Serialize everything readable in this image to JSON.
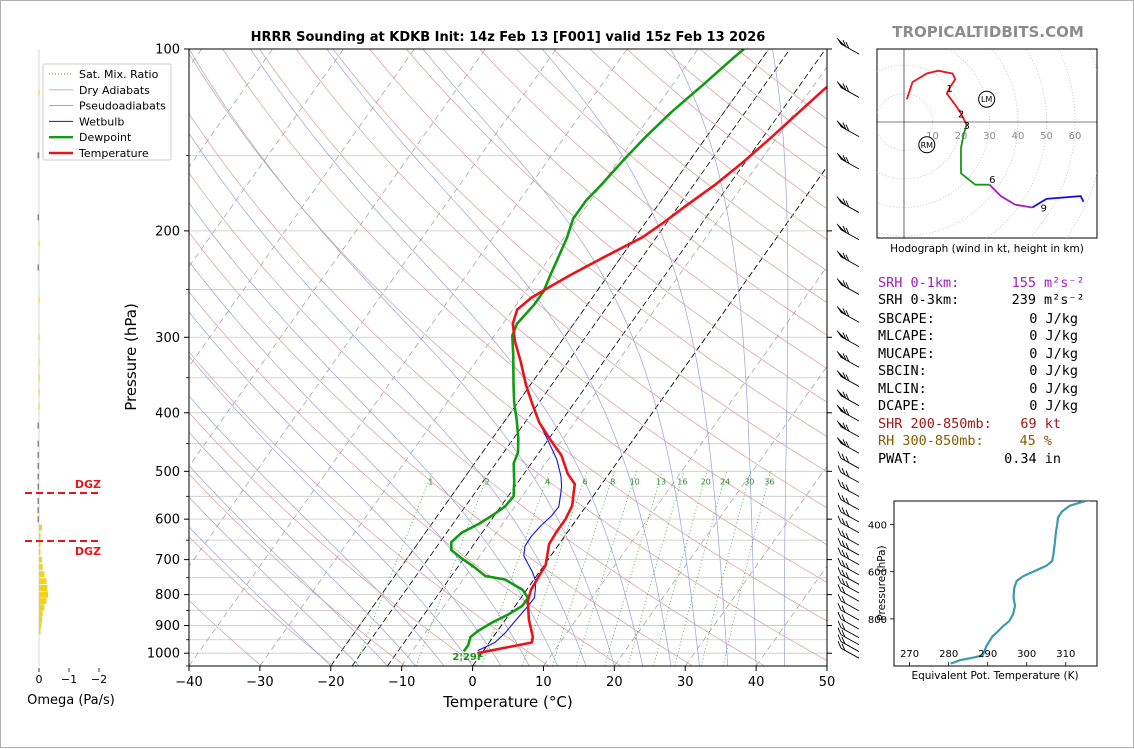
{
  "title": "HRRR Sounding at KDKB Init: 14z Feb 13 [F001] valid 15z Feb 13 2026",
  "brand": "TROPICALTIDBITS.COM",
  "colors": {
    "temperature": "#e8141a",
    "dewpoint": "#139a14",
    "wetbulb": "#1010e0",
    "dry_adiabat": "#d99a9a",
    "pseudoadiabat": "#9aa0d8",
    "mixing_ratio": "#3aa03a",
    "isotherm": "#999999",
    "dgz": "#e8141a",
    "omega": "#f2d21a",
    "theta_e": "#3a9ab0",
    "srh_1km": "#a020c0",
    "shear": "#a01818",
    "rh": "#8a5a00"
  },
  "chart_data": [
    {
      "type": "line",
      "name": "skewt",
      "xlabel": "Temperature (°C)",
      "ylabel": "Pressure (hPa)",
      "xlim": [
        -40,
        50
      ],
      "ylim": [
        1050,
        100
      ],
      "y_scale": "log",
      "x_ticks": [
        "−40",
        "−30",
        "−20",
        "−10",
        "0",
        "10",
        "20",
        "30",
        "40",
        "50"
      ],
      "y_ticks": [
        "100",
        "200",
        "300",
        "400",
        "500",
        "600",
        "700",
        "800",
        "900",
        "1000"
      ],
      "legend": {
        "placement": "top-left",
        "entries": [
          "Sat. Mix. Ratio",
          "Dry Adiabats",
          "Pseudoadiabats",
          "Wetbulb",
          "Dewpoint",
          "Temperature"
        ]
      },
      "mixing_ratio_labels": [
        "1",
        "2",
        "4",
        "6",
        "8",
        "10",
        "13",
        "16",
        "20",
        "24",
        "30",
        "36"
      ],
      "mixing_ratio_values": [
        1,
        2,
        4,
        6,
        8,
        10,
        13,
        16,
        20,
        24,
        30,
        36
      ],
      "surface_dewpoint_label": "2¦29F",
      "series": [
        {
          "name": "Temperature",
          "points": [
            [
              -0.6,
              1000
            ],
            [
              6,
              960
            ],
            [
              5.6,
              940
            ],
            [
              3.3,
              880
            ],
            [
              1.3,
              820
            ],
            [
              0.6,
              785
            ],
            [
              0.4,
              750
            ],
            [
              0.2,
              715
            ],
            [
              -0.5,
              690
            ],
            [
              -1.4,
              660
            ],
            [
              -1.6,
              630
            ],
            [
              -1.6,
              600
            ],
            [
              -2,
              570
            ],
            [
              -3,
              545
            ],
            [
              -3.8,
              525
            ],
            [
              -5.8,
              505
            ],
            [
              -8.6,
              470
            ],
            [
              -11.5,
              445
            ],
            [
              -15,
              415
            ],
            [
              -18,
              385
            ],
            [
              -20.6,
              360
            ],
            [
              -23.6,
              330
            ],
            [
              -26.5,
              305
            ],
            [
              -28.6,
              285
            ],
            [
              -29.4,
              270
            ],
            [
              -28.6,
              258
            ],
            [
              -27,
              247
            ],
            [
              -25.4,
              237
            ],
            [
              -22.6,
              222
            ],
            [
              -19,
              205
            ],
            [
              -17.5,
              194
            ],
            [
              -16,
              182
            ],
            [
              -14,
              168
            ],
            [
              -12.2,
              153
            ],
            [
              -10.8,
              140
            ],
            [
              -9.4,
              127
            ],
            [
              -8.2,
              117
            ],
            [
              -7,
              109
            ],
            [
              -6.3,
              103
            ],
            [
              -6,
              100
            ]
          ]
        },
        {
          "name": "Dewpoint",
          "points": [
            [
              -2.7,
              993
            ],
            [
              -2.7,
              970
            ],
            [
              -3.2,
              940
            ],
            [
              -2.7,
              918
            ],
            [
              -1.6,
              890
            ],
            [
              -0.2,
              865
            ],
            [
              1,
              835
            ],
            [
              1,
              810
            ],
            [
              -0.6,
              785
            ],
            [
              -4.1,
              755
            ],
            [
              -7.2,
              745
            ],
            [
              -9.7,
              720
            ],
            [
              -12.5,
              695
            ],
            [
              -14.6,
              675
            ],
            [
              -15.4,
              655
            ],
            [
              -14.9,
              632
            ],
            [
              -13.3,
              610
            ],
            [
              -12.2,
              590
            ],
            [
              -11.4,
              572
            ],
            [
              -11.2,
              550
            ],
            [
              -12.6,
              520
            ],
            [
              -14.5,
              485
            ],
            [
              -15,
              465
            ],
            [
              -16.4,
              440
            ],
            [
              -18.5,
              410
            ],
            [
              -20.5,
              385
            ],
            [
              -22.5,
              358
            ],
            [
              -25.5,
              320
            ],
            [
              -27.5,
              298
            ],
            [
              -28,
              285
            ],
            [
              -27.5,
              265
            ],
            [
              -27.5,
              252
            ],
            [
              -28.2,
              236
            ],
            [
              -28.8,
              222
            ],
            [
              -29.6,
              205
            ],
            [
              -30.6,
              191
            ],
            [
              -30.6,
              178
            ],
            [
              -30,
              167
            ],
            [
              -29.4,
              153
            ],
            [
              -28.6,
              140
            ],
            [
              -27.4,
              127
            ],
            [
              -25.6,
              114
            ],
            [
              -24.2,
              104
            ],
            [
              -23.5,
              100
            ]
          ]
        },
        {
          "name": "Wetbulb",
          "points": [
            [
              -0.8,
              990
            ],
            [
              0.8,
              960
            ],
            [
              1.3,
              925
            ],
            [
              1.5,
              885
            ],
            [
              1.8,
              840
            ],
            [
              1.9,
              810
            ],
            [
              1.2,
              785
            ],
            [
              0.4,
              760
            ],
            [
              -0.9,
              735
            ],
            [
              -2.5,
              710
            ],
            [
              -3.8,
              690
            ],
            [
              -4.6,
              665
            ],
            [
              -4.7,
              640
            ],
            [
              -4.4,
              615
            ],
            [
              -3.9,
              592
            ],
            [
              -3.8,
              572
            ],
            [
              -4.8,
              545
            ],
            [
              -5.4,
              530
            ],
            [
              -6.5,
              510
            ],
            [
              -8.8,
              478
            ],
            [
              -11.9,
              445
            ],
            [
              -15,
              415
            ],
            [
              -18,
              385
            ],
            [
              -20.6,
              360
            ],
            [
              -23.6,
              330
            ],
            [
              -26.5,
              305
            ],
            [
              -28.6,
              285
            ],
            [
              -29.4,
              270
            ],
            [
              -28.6,
              258
            ],
            [
              -27,
              247
            ],
            [
              -25.4,
              237
            ],
            [
              -22.6,
              222
            ],
            [
              -19,
              205
            ],
            [
              -17.5,
              194
            ],
            [
              -16,
              182
            ],
            [
              -14,
              168
            ],
            [
              -12.2,
              153
            ],
            [
              -10.8,
              140
            ],
            [
              -9.4,
              127
            ],
            [
              -8.2,
              117
            ],
            [
              -7,
              109
            ],
            [
              -6.3,
              103
            ],
            [
              -6,
              100
            ]
          ]
        }
      ]
    },
    {
      "type": "bar",
      "name": "omega",
      "xlabel": "Omega (Pa/s)",
      "x_ticks": [
        "0",
        "−1",
        "−2"
      ],
      "dgz_labels": [
        "DGZ",
        "DGZ"
      ],
      "dgz_pressures": [
        543,
        652
      ]
    },
    {
      "type": "line",
      "name": "hodograph",
      "xlabel": "Hodograph (wind in kt, height in km)",
      "ring_labels": [
        "10",
        "20",
        "30",
        "40",
        "50",
        "60"
      ],
      "height_labels": [
        "1",
        "2",
        "3",
        "6",
        "9"
      ],
      "storm_motion_labels": [
        "LM",
        "RM"
      ],
      "lm": [
        29,
        8
      ],
      "rm": [
        8,
        -8
      ]
    },
    {
      "type": "line",
      "name": "theta_e",
      "xlabel": "Equivalent Pot. Temperature (K)",
      "ylabel": "Pressure (hPa)",
      "x_ticks": [
        "270",
        "280",
        "290",
        "300",
        "310"
      ],
      "y_ticks": [
        "400",
        "600",
        "800"
      ],
      "points": [
        [
          280.5,
          990
        ],
        [
          283,
          975
        ],
        [
          286,
          965
        ],
        [
          288.7,
          955
        ],
        [
          289.7,
          915
        ],
        [
          291.2,
          875
        ],
        [
          292.5,
          855
        ],
        [
          294,
          830
        ],
        [
          295.5,
          810
        ],
        [
          296.5,
          780
        ],
        [
          297,
          745
        ],
        [
          296.6,
          710
        ],
        [
          296.8,
          670
        ],
        [
          297.4,
          640
        ],
        [
          299,
          620
        ],
        [
          301,
          605
        ],
        [
          303,
          590
        ],
        [
          305,
          575
        ],
        [
          306.5,
          555
        ],
        [
          306.8,
          530
        ],
        [
          307.2,
          480
        ],
        [
          307.5,
          430
        ],
        [
          307.8,
          400
        ],
        [
          308,
          370
        ],
        [
          309,
          345
        ],
        [
          311,
          320
        ],
        [
          314,
          305
        ],
        [
          317.5,
          290
        ]
      ]
    }
  ],
  "indices": {
    "srh1": {
      "label": "SRH 0-1km:",
      "value": "155"
    },
    "srh3": {
      "label": "SRH 0-3km:",
      "value": "239"
    },
    "srh_unit": "m²s⁻²",
    "rows": [
      {
        "label": "SBCAPE:",
        "value": "0 J/kg"
      },
      {
        "label": "MLCAPE:",
        "value": "0 J/kg"
      },
      {
        "label": "MUCAPE:",
        "value": "0 J/kg"
      },
      {
        "label": "SBCIN:",
        "value": "0 J/kg"
      },
      {
        "label": "MLCIN:",
        "value": "0 J/kg"
      },
      {
        "label": "DCAPE:",
        "value": "0 J/kg"
      }
    ],
    "shear": {
      "label": "SHR 200-850mb:",
      "value": "69 kt"
    },
    "rh": {
      "label": "RH 300-850mb:",
      "value": "45 %"
    },
    "pwat": {
      "label": "PWAT:",
      "value": "0.34 in"
    }
  }
}
